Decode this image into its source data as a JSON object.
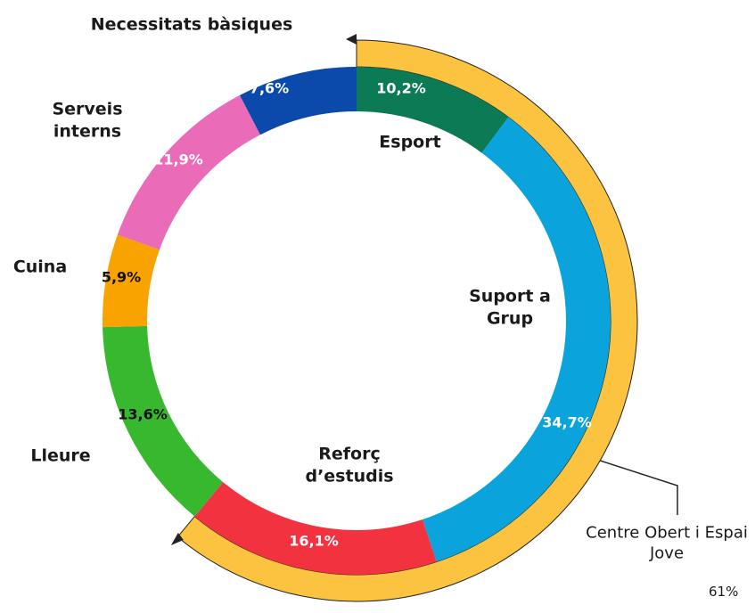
{
  "chart_data": {
    "type": "pie",
    "donut": true,
    "categories": [
      "Esport",
      "Suport a Grup",
      "Reforç d’estudis",
      "Lleure",
      "Cuina",
      "Serveis interns",
      "Necessitats bàsiques"
    ],
    "values": [
      10.2,
      34.7,
      16.1,
      13.6,
      5.9,
      11.9,
      7.6
    ],
    "value_labels": [
      "10,2%",
      "34,7%",
      "16,1%",
      "13,6%",
      "5,9%",
      "11,9%",
      "7,6%"
    ],
    "colors": [
      "#0b7a55",
      "#0aa3dc",
      "#f2333f",
      "#37b82f",
      "#f8a300",
      "#ea6cb9",
      "#0b4aab"
    ],
    "label_colors": [
      "#ffffff",
      "#ffffff",
      "#ffffff",
      "#111111",
      "#111111",
      "#ffffff",
      "#ffffff"
    ],
    "groups": [
      {
        "name": "Centre Obert i Espai Jove",
        "value": 61,
        "value_label": "61%",
        "color": "#fcc340"
      }
    ]
  }
}
